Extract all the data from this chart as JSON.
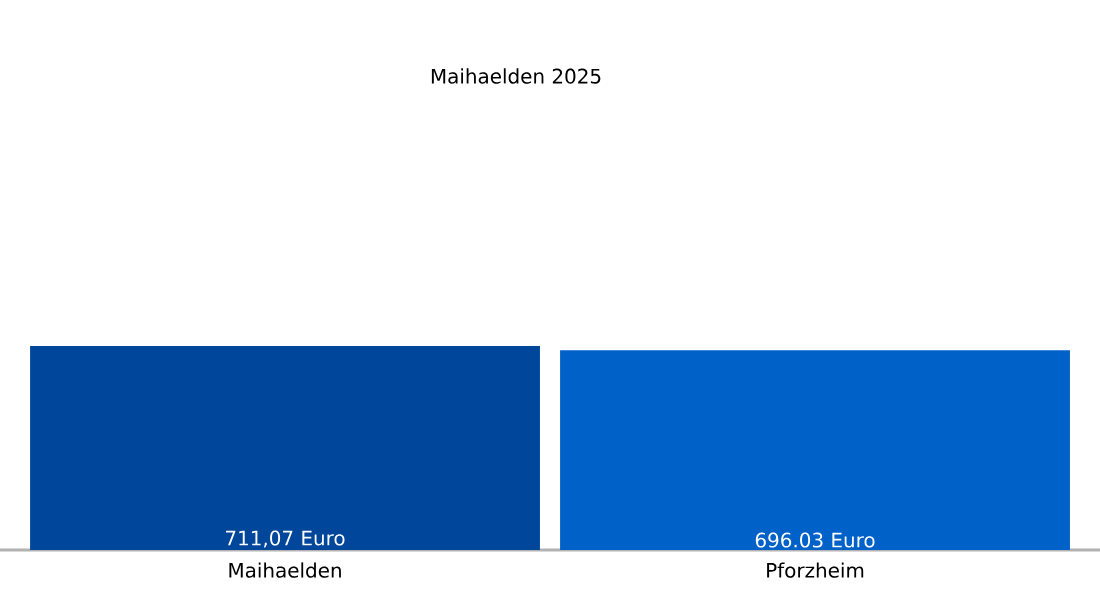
{
  "chart_data": {
    "type": "bar",
    "title": "Maihaelden 2025",
    "categories": [
      "Maihaelden",
      "Pforzheim"
    ],
    "values": [
      711.07,
      696.03
    ],
    "value_labels": [
      "711,07 Euro",
      "696.03 Euro"
    ],
    "colors": [
      "#00469a",
      "#0061c8"
    ]
  }
}
